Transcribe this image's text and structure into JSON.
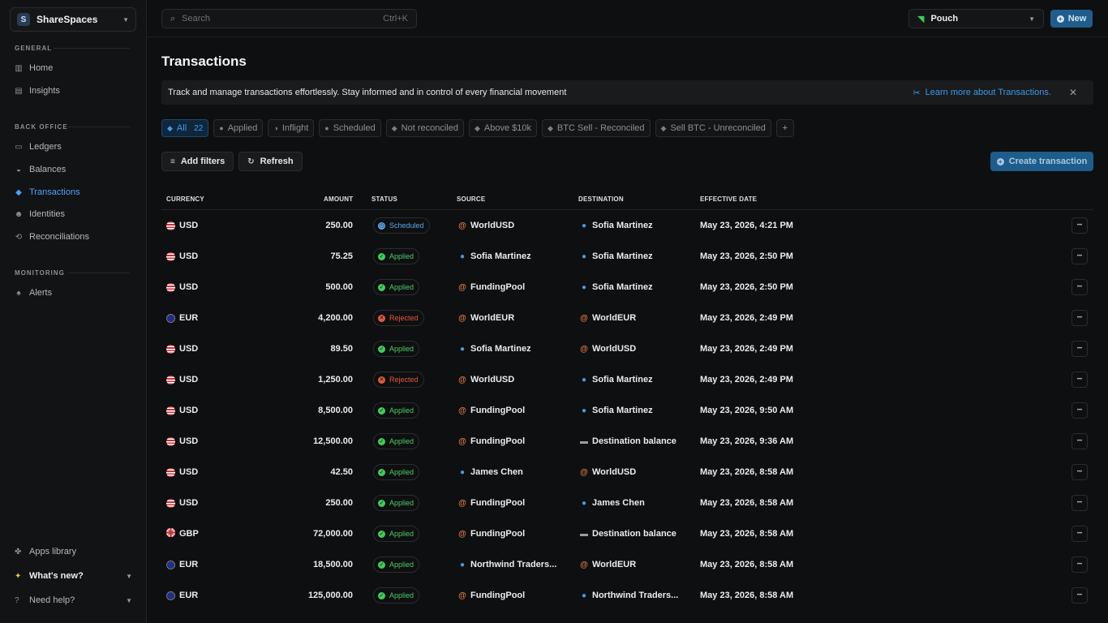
{
  "workspace": {
    "initial": "S",
    "name": "ShareSpaces"
  },
  "nav": {
    "general_label": "GENERAL",
    "general": [
      {
        "label": "Home",
        "icon": "building-icon"
      },
      {
        "label": "Insights",
        "icon": "chart-icon"
      }
    ],
    "backoffice_label": "BACK OFFICE",
    "backoffice": [
      {
        "label": "Ledgers",
        "icon": "folder-icon"
      },
      {
        "label": "Balances",
        "icon": "coins-icon"
      },
      {
        "label": "Transactions",
        "icon": "cube-icon",
        "active": true
      },
      {
        "label": "Identities",
        "icon": "users-icon"
      },
      {
        "label": "Reconciliations",
        "icon": "reconcile-icon"
      }
    ],
    "monitoring_label": "MONITORING",
    "monitoring": [
      {
        "label": "Alerts",
        "icon": "bell-icon"
      }
    ],
    "bottom": {
      "apps": "Apps library",
      "whats_new": "What's new?",
      "help": "Need help?"
    }
  },
  "topbar": {
    "search_placeholder": "Search",
    "search_shortcut": "Ctrl+K",
    "ledger": "Pouch",
    "new_label": "New"
  },
  "page": {
    "title": "Transactions",
    "banner_text": "Track and manage transactions effortlessly. Stay informed and in control of every financial movement",
    "banner_link": "Learn more about Transactions.",
    "tabs": [
      {
        "label": "All",
        "count": "22",
        "active": true
      },
      {
        "label": "Applied"
      },
      {
        "label": "Inflight"
      },
      {
        "label": "Scheduled"
      },
      {
        "label": "Not reconciled"
      },
      {
        "label": "Above $10k"
      },
      {
        "label": "BTC Sell - Reconciled"
      },
      {
        "label": "Sell BTC - Unreconciled"
      }
    ],
    "add_filters": "Add filters",
    "refresh": "Refresh",
    "create": "Create transaction"
  },
  "table": {
    "headers": {
      "currency": "CURRENCY",
      "amount": "AMOUNT",
      "status": "STATUS",
      "source": "SOURCE",
      "destination": "DESTINATION",
      "date": "EFFECTIVE DATE"
    },
    "rows": [
      {
        "currency": "USD",
        "amount": "250.00",
        "status": "Scheduled",
        "source": "WorldUSD",
        "source_type": "at",
        "destination": "Sofia Martinez",
        "dest_type": "user",
        "date": "May 23, 2026, 4:21 PM"
      },
      {
        "currency": "USD",
        "amount": "75.25",
        "status": "Applied",
        "source": "Sofia Martinez",
        "source_type": "user",
        "destination": "Sofia Martinez",
        "dest_type": "user",
        "date": "May 23, 2026, 2:50 PM"
      },
      {
        "currency": "USD",
        "amount": "500.00",
        "status": "Applied",
        "source": "FundingPool",
        "source_type": "at",
        "destination": "Sofia Martinez",
        "dest_type": "user",
        "date": "May 23, 2026, 2:50 PM"
      },
      {
        "currency": "EUR",
        "amount": "4,200.00",
        "status": "Rejected",
        "source": "WorldEUR",
        "source_type": "at",
        "destination": "WorldEUR",
        "dest_type": "at",
        "date": "May 23, 2026, 2:49 PM"
      },
      {
        "currency": "USD",
        "amount": "89.50",
        "status": "Applied",
        "source": "Sofia Martinez",
        "source_type": "user",
        "destination": "WorldUSD",
        "dest_type": "at",
        "date": "May 23, 2026, 2:49 PM"
      },
      {
        "currency": "USD",
        "amount": "1,250.00",
        "status": "Rejected",
        "source": "WorldUSD",
        "source_type": "at",
        "destination": "Sofia Martinez",
        "dest_type": "user",
        "date": "May 23, 2026, 2:49 PM"
      },
      {
        "currency": "USD",
        "amount": "8,500.00",
        "status": "Applied",
        "source": "FundingPool",
        "source_type": "at",
        "destination": "Sofia Martinez",
        "dest_type": "user",
        "date": "May 23, 2026, 9:50 AM"
      },
      {
        "currency": "USD",
        "amount": "12,500.00",
        "status": "Applied",
        "source": "FundingPool",
        "source_type": "at",
        "destination": "Destination balance",
        "dest_type": "bal",
        "date": "May 23, 2026, 9:36 AM"
      },
      {
        "currency": "USD",
        "amount": "42.50",
        "status": "Applied",
        "source": "James Chen",
        "source_type": "user",
        "destination": "WorldUSD",
        "dest_type": "at",
        "date": "May 23, 2026, 8:58 AM"
      },
      {
        "currency": "USD",
        "amount": "250.00",
        "status": "Applied",
        "source": "FundingPool",
        "source_type": "at",
        "destination": "James Chen",
        "dest_type": "user",
        "date": "May 23, 2026, 8:58 AM"
      },
      {
        "currency": "GBP",
        "amount": "72,000.00",
        "status": "Applied",
        "source": "FundingPool",
        "source_type": "at",
        "destination": "Destination balance",
        "dest_type": "bal",
        "date": "May 23, 2026, 8:58 AM"
      },
      {
        "currency": "EUR",
        "amount": "18,500.00",
        "status": "Applied",
        "source": "Northwind Traders...",
        "source_type": "user",
        "destination": "WorldEUR",
        "dest_type": "at",
        "date": "May 23, 2026, 8:58 AM"
      },
      {
        "currency": "EUR",
        "amount": "125,000.00",
        "status": "Applied",
        "source": "FundingPool",
        "source_type": "at",
        "destination": "Northwind Traders...",
        "dest_type": "user",
        "date": "May 23, 2026, 8:58 AM"
      }
    ]
  },
  "colors": {
    "accent": "#3f9ff0",
    "applied": "#4ccd64",
    "rejected": "#e5583f",
    "scheduled": "#5aa8ef"
  }
}
